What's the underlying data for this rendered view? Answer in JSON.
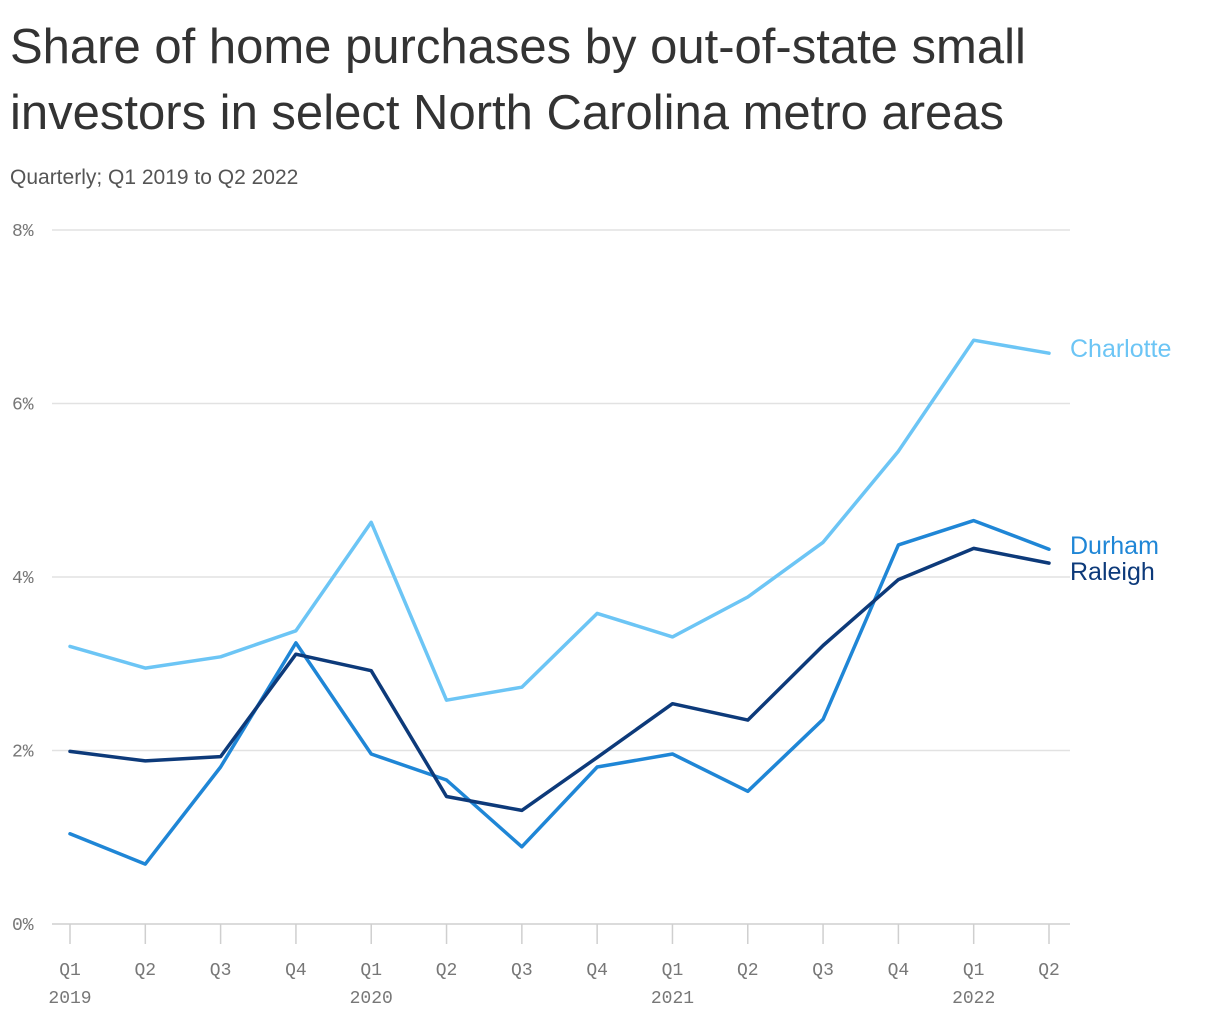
{
  "title": "Share of home purchases by out-of-state small investors in select North Carolina metro areas",
  "subtitle": "Quarterly; Q1 2019 to Q2 2022",
  "chart_data": {
    "type": "line",
    "x_quarters": [
      "Q1",
      "Q2",
      "Q3",
      "Q4",
      "Q1",
      "Q2",
      "Q3",
      "Q4",
      "Q1",
      "Q2",
      "Q3",
      "Q4",
      "Q1",
      "Q2"
    ],
    "x_years": [
      {
        "label": "2019",
        "index": 0
      },
      {
        "label": "2020",
        "index": 4
      },
      {
        "label": "2021",
        "index": 8
      },
      {
        "label": "2022",
        "index": 12
      }
    ],
    "y_ticks": [
      {
        "value": 0,
        "label": "0%"
      },
      {
        "value": 2,
        "label": "2%"
      },
      {
        "value": 4,
        "label": "4%"
      },
      {
        "value": 6,
        "label": "6%"
      },
      {
        "value": 8,
        "label": "8%"
      }
    ],
    "ylim": [
      0,
      8
    ],
    "grid": true,
    "series": [
      {
        "name": "Charlotte",
        "color": "#6cc5f5",
        "values": [
          3.2,
          2.95,
          3.08,
          3.38,
          4.63,
          2.58,
          2.73,
          3.58,
          3.31,
          3.77,
          4.4,
          5.45,
          6.73,
          6.58
        ]
      },
      {
        "name": "Durham",
        "color": "#1f86d6",
        "values": [
          1.04,
          0.69,
          1.81,
          3.24,
          1.96,
          1.66,
          0.89,
          1.81,
          1.96,
          1.53,
          2.36,
          4.37,
          4.65,
          4.32
        ]
      },
      {
        "name": "Raleigh",
        "color": "#0d3a7a",
        "values": [
          1.99,
          1.88,
          1.93,
          3.11,
          2.92,
          1.47,
          1.31,
          1.92,
          2.54,
          2.35,
          3.21,
          3.97,
          4.33,
          4.16
        ]
      }
    ]
  }
}
